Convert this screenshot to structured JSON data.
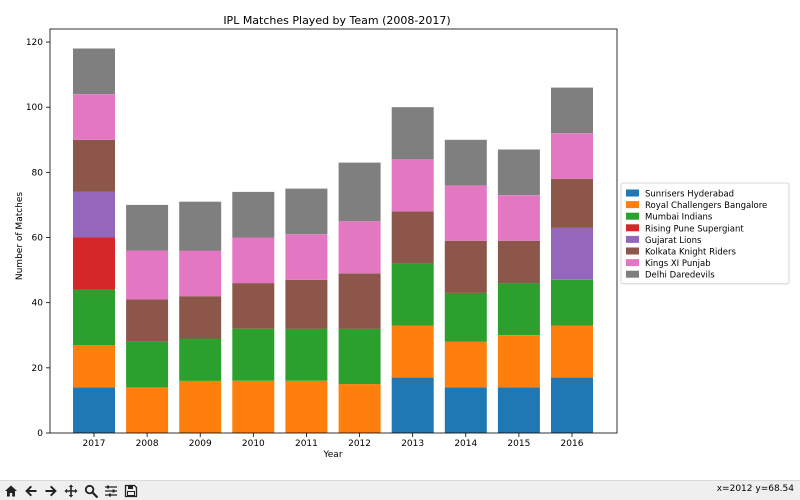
{
  "chart_data": {
    "type": "bar",
    "stacked": true,
    "title": "IPL Matches Played by Team (2008-2017)",
    "xlabel": "Year",
    "ylabel": "Number of Matches",
    "ylim": [
      0,
      124
    ],
    "yticks": [
      0,
      20,
      40,
      60,
      80,
      100,
      120
    ],
    "categories": [
      "2017",
      "2008",
      "2009",
      "2010",
      "2011",
      "2012",
      "2013",
      "2014",
      "2015",
      "2016"
    ],
    "series": [
      {
        "name": "Sunrisers Hyderabad",
        "color": "#1f77b4",
        "values": [
          14,
          0,
          0,
          0,
          0,
          0,
          17,
          14,
          14,
          17
        ]
      },
      {
        "name": "Royal Challengers Bangalore",
        "color": "#ff7f0e",
        "values": [
          13,
          14,
          16,
          16,
          16,
          15,
          16,
          14,
          16,
          16
        ]
      },
      {
        "name": "Mumbai Indians",
        "color": "#2ca02c",
        "values": [
          17,
          14,
          13,
          16,
          16,
          17,
          19,
          15,
          16,
          14
        ]
      },
      {
        "name": "Rising Pune Supergiant",
        "color": "#d62728",
        "values": [
          16,
          0,
          0,
          0,
          0,
          0,
          0,
          0,
          0,
          0
        ]
      },
      {
        "name": "Gujarat Lions",
        "color": "#9467bd",
        "values": [
          14,
          0,
          0,
          0,
          0,
          0,
          0,
          0,
          0,
          16
        ]
      },
      {
        "name": "Kolkata Knight Riders",
        "color": "#8c564b",
        "values": [
          16,
          13,
          13,
          14,
          15,
          17,
          16,
          16,
          13,
          15
        ]
      },
      {
        "name": "Kings XI Punjab",
        "color": "#e377c2",
        "values": [
          14,
          15,
          14,
          14,
          14,
          16,
          16,
          17,
          14,
          14
        ]
      },
      {
        "name": "Delhi Daredevils",
        "color": "#7f7f7f",
        "values": [
          14,
          14,
          15,
          14,
          14,
          18,
          16,
          14,
          14,
          14
        ]
      }
    ],
    "legend_position": "right-center"
  },
  "toolbar": {
    "coords": "x=2012 y=68.54",
    "icons": [
      "home-icon",
      "back-icon",
      "forward-icon",
      "pan-icon",
      "zoom-icon",
      "configure-icon",
      "save-icon"
    ]
  }
}
